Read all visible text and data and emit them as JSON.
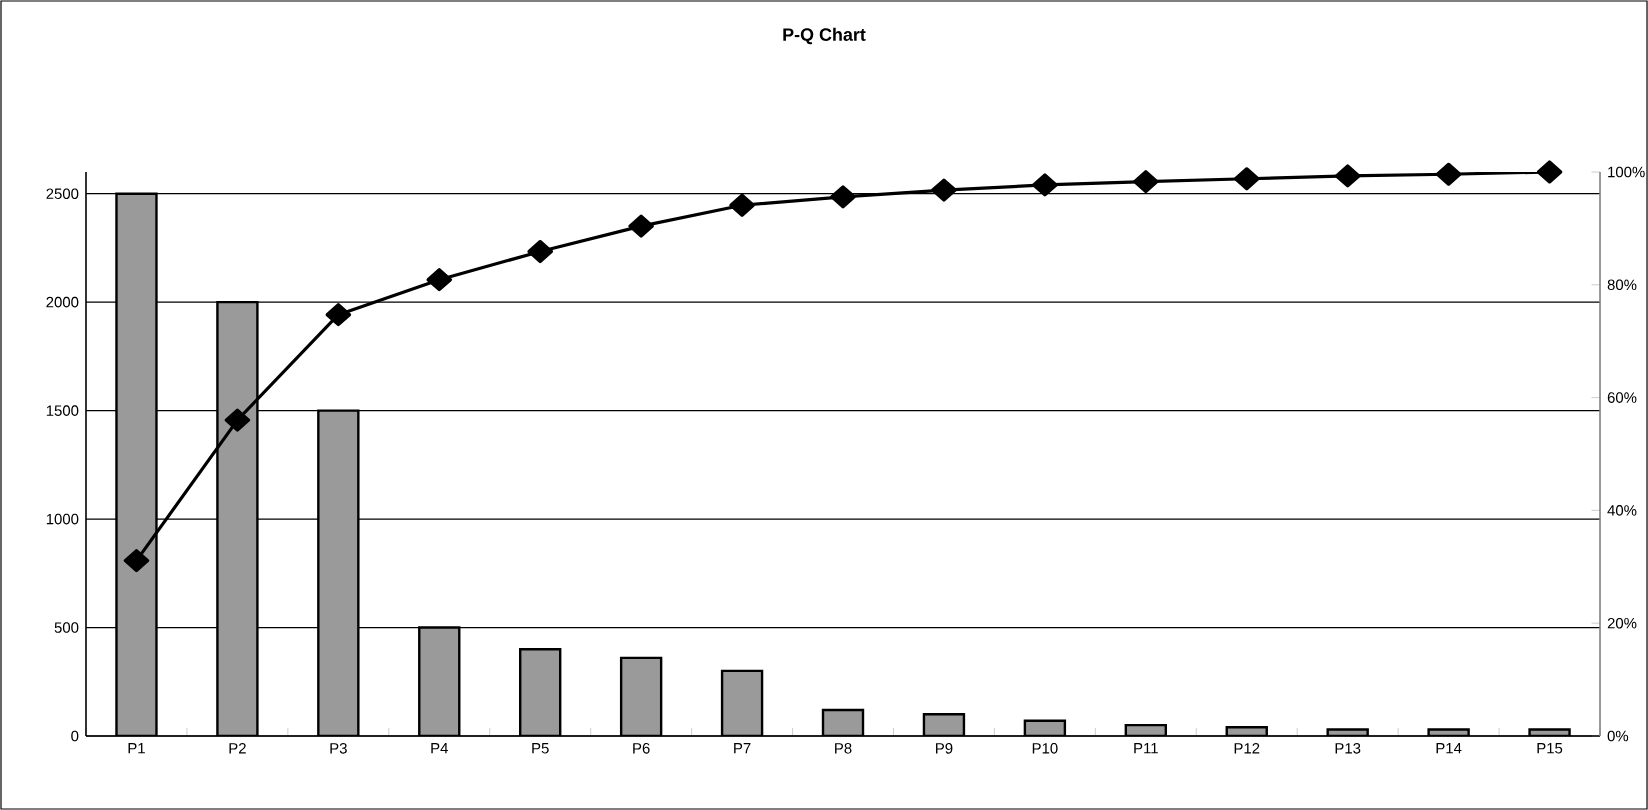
{
  "chart_data": {
    "type": "bar",
    "title": "P-Q Chart",
    "categories": [
      "P1",
      "P2",
      "P3",
      "P4",
      "P5",
      "P6",
      "P7",
      "P8",
      "P9",
      "P10",
      "P11",
      "P12",
      "P13",
      "P14",
      "P15"
    ],
    "series": [
      {
        "color": "#9a9a9a",
        "values": [
          2500,
          2000,
          1500,
          500,
          400,
          360,
          300,
          120,
          100,
          70,
          50,
          40,
          30,
          30,
          30
        ]
      },
      {
        "type": "line",
        "axis": "y2",
        "color": "#000000",
        "marker": "diamond",
        "values": [
          31.1,
          56.0,
          74.7,
          80.9,
          85.9,
          90.4,
          94.1,
          95.6,
          96.8,
          97.7,
          98.3,
          98.8,
          99.3,
          99.6,
          100
        ]
      }
    ],
    "ylim": [
      0,
      2600
    ],
    "yticks": [
      0,
      500,
      1000,
      1500,
      2000,
      2500
    ],
    "y2lim": [
      0,
      100
    ],
    "y2ticks": [
      {
        "value": 0,
        "label": "0%"
      },
      {
        "value": 20,
        "label": "20%"
      },
      {
        "value": 40,
        "label": "40%"
      },
      {
        "value": 60,
        "label": "60%"
      },
      {
        "value": 80,
        "label": "80%"
      },
      {
        "value": 100,
        "label": "100%"
      }
    ],
    "grid": "y"
  }
}
